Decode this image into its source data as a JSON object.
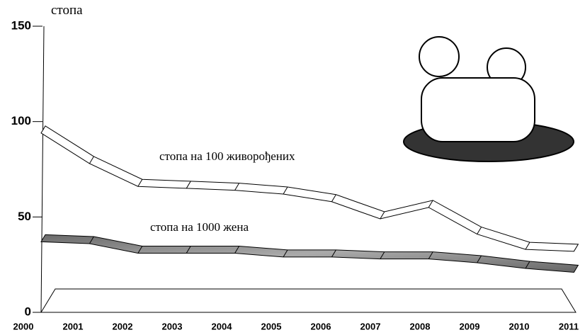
{
  "chart_data": {
    "type": "ribbon",
    "y_label": "стопа",
    "categories": [
      "2000",
      "2001",
      "2002",
      "2003",
      "2004",
      "2005",
      "2006",
      "2007",
      "2008",
      "2009",
      "2010",
      "2011"
    ],
    "series": [
      {
        "name": "стопа на 100 живорођених",
        "color": "#ffffff",
        "values": [
          94,
          78,
          66,
          65,
          64,
          62,
          58,
          49,
          55,
          41,
          33,
          32
        ]
      },
      {
        "name": "стопа на 1000 жена",
        "color": "#8a8a8a",
        "values": [
          37,
          36,
          31,
          31,
          31,
          29,
          29,
          28,
          28,
          26,
          23,
          21
        ]
      }
    ],
    "ylim": [
      0,
      150
    ],
    "yticks": [
      0,
      50,
      100,
      150
    ]
  }
}
